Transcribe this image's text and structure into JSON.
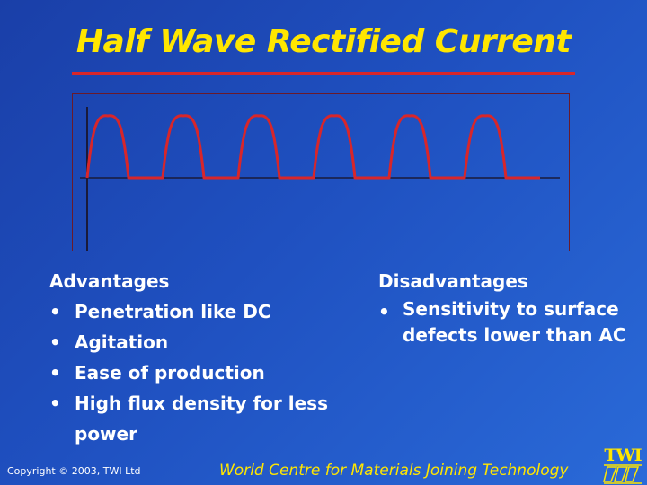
{
  "slide": {
    "title": "Half Wave Rectified Current"
  },
  "diagram": {
    "pulse_count": 6,
    "line_color": "#d8262a",
    "axis_color": "#1a1a3a"
  },
  "advantages": {
    "heading": "Advantages",
    "bullet": "•",
    "items": [
      "Penetration like DC",
      "Agitation",
      "Ease of production",
      "High flux density for less power"
    ]
  },
  "disadvantages": {
    "heading": "Disadvantages",
    "bullet": "•",
    "items": [
      "Sensitivity to surface defects lower than AC"
    ]
  },
  "footer": {
    "copyright": "Copyright © 2003, TWI Ltd",
    "tagline": "World Centre for Materials Joining Technology",
    "logo_text": "TWI"
  },
  "colors": {
    "title": "#ffe600",
    "accent_rule": "#d8262a",
    "body_text": "#ffffff",
    "background": "#1f50c0"
  }
}
